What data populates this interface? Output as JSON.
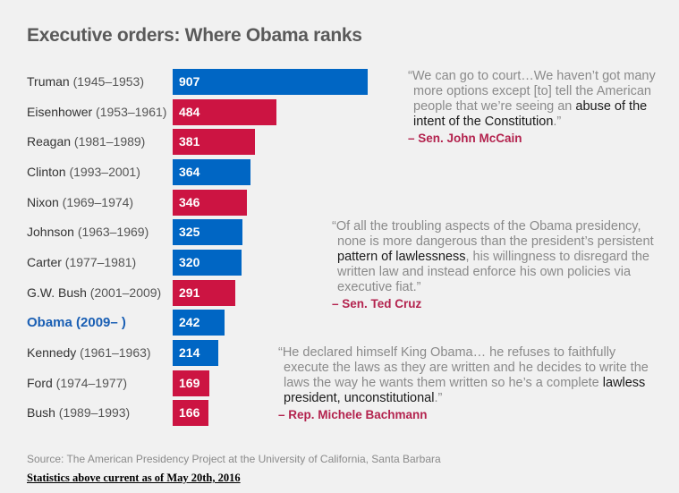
{
  "chart_data": {
    "type": "bar",
    "orientation": "horizontal",
    "title": "Executive orders: Where Obama ranks",
    "categories": [
      {
        "name": "Truman",
        "years": "(1945–1953)",
        "party": "D"
      },
      {
        "name": "Eisenhower",
        "years": "(1953–1961)",
        "party": "R"
      },
      {
        "name": "Reagan",
        "years": "(1981–1989)",
        "party": "R"
      },
      {
        "name": "Clinton",
        "years": "(1993–2001)",
        "party": "D"
      },
      {
        "name": "Nixon",
        "years": "(1969–1974)",
        "party": "R"
      },
      {
        "name": "Johnson",
        "years": "(1963–1969)",
        "party": "D"
      },
      {
        "name": "Carter",
        "years": "(1977–1981)",
        "party": "D"
      },
      {
        "name": "G.W. Bush",
        "years": "(2001–2009)",
        "party": "R"
      },
      {
        "name": "Obama",
        "years": "(2009– )",
        "party": "D",
        "highlight": true
      },
      {
        "name": "Kennedy",
        "years": "(1961–1963)",
        "party": "D"
      },
      {
        "name": "Ford",
        "years": "(1974–1977)",
        "party": "R"
      },
      {
        "name": "Bush",
        "years": "(1989–1993)",
        "party": "R"
      }
    ],
    "values": [
      907,
      484,
      381,
      364,
      346,
      325,
      320,
      291,
      242,
      214,
      169,
      166
    ],
    "xlim": [
      0,
      907
    ],
    "grid": false,
    "colors": {
      "D": "#0066c4",
      "R": "#cc1442"
    }
  },
  "quotes": [
    {
      "pre": "“We can go to court…We haven’t got many more options except [to] tell the American people that we’re seeing an ",
      "hl": "abuse of the intent of the Constitution",
      "post": ".”",
      "by": "– Sen. John McCain"
    },
    {
      "pre": "“Of all the troubling aspects of the Obama presidency, none is more dangerous than the president’s persistent ",
      "hl": "pattern of lawlessness",
      "post": ", his willingness to disregard the written law and instead enforce his own policies via executive fiat.”",
      "by": "– Sen. Ted Cruz"
    },
    {
      "pre": "“He declared himself King Obama… he refuses to faithfully execute the laws as they are written and he decides to write the laws the way he wants them written so he’s a complete ",
      "hl": "lawless president, unconstitutional",
      "post": ".”",
      "by": "– Rep. Michele Bachmann"
    }
  ],
  "source": "Source: The American Presidency Project at the University of California, Santa Barbara",
  "note": "Statistics above current as of May 20th, 2016"
}
